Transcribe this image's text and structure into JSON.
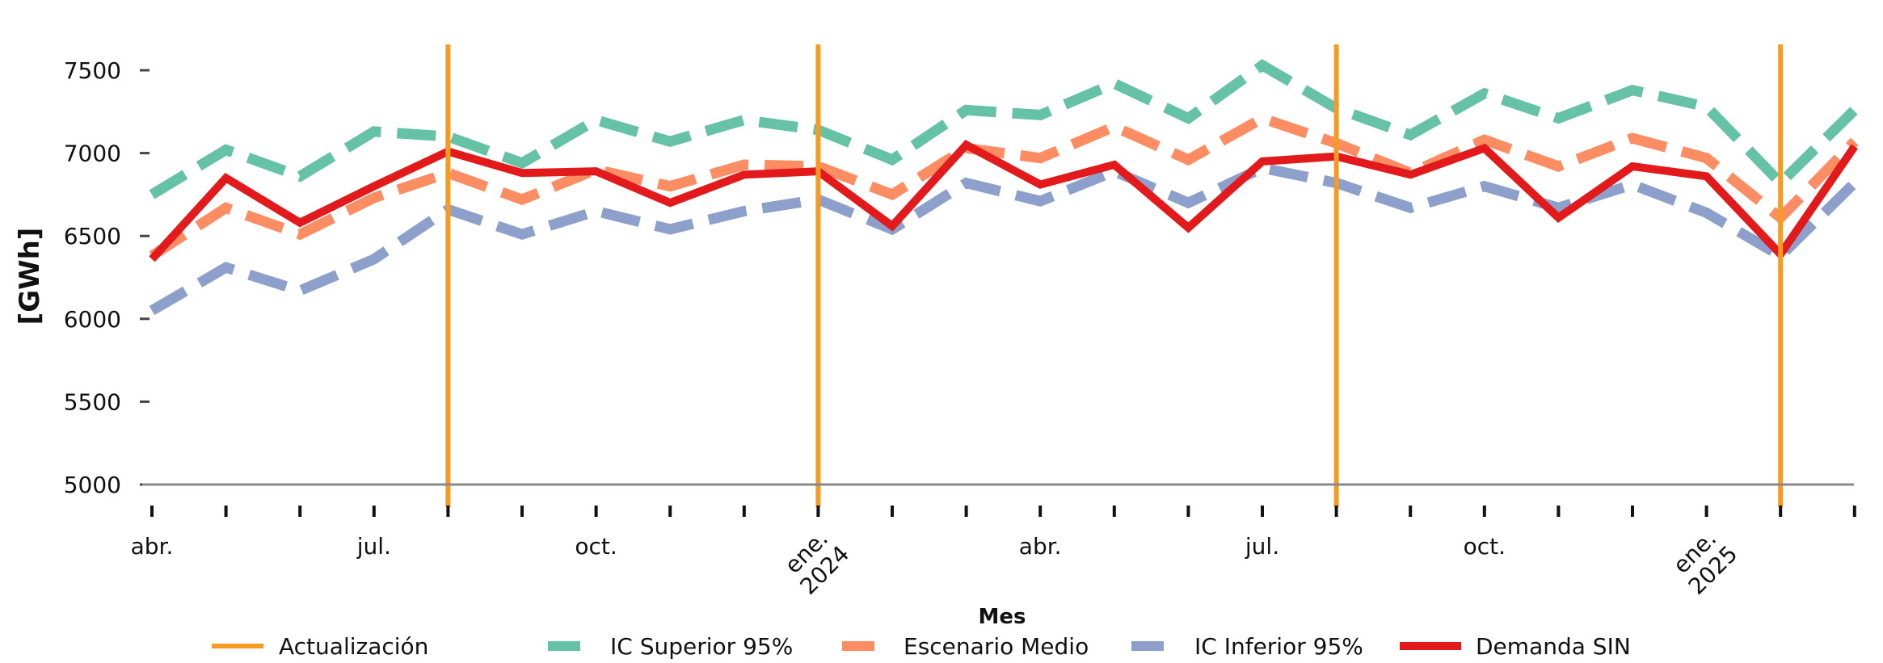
{
  "chart_data": {
    "type": "line",
    "title": "",
    "xlabel": "Mes",
    "ylabel": "[GWh]",
    "ylim": [
      5000,
      7500
    ],
    "yticks": [
      5000,
      5500,
      6000,
      6500,
      7000,
      7500
    ],
    "x_start": "2023-04",
    "x": [
      "2023-04",
      "2023-05",
      "2023-06",
      "2023-07",
      "2023-08",
      "2023-09",
      "2023-10",
      "2023-11",
      "2023-12",
      "2024-01",
      "2024-02",
      "2024-03",
      "2024-04",
      "2024-05",
      "2024-06",
      "2024-07",
      "2024-08",
      "2024-09",
      "2024-10",
      "2024-11",
      "2024-12",
      "2025-01",
      "2025-02",
      "2025-03",
      "2025-04"
    ],
    "x_tick_labels": [
      {
        "month": "2023-04",
        "label": "abr."
      },
      {
        "month": "2023-07",
        "label": "jul."
      },
      {
        "month": "2023-10",
        "label": "oct."
      },
      {
        "month": "2024-01",
        "label": "ene.\n2024",
        "rotated": true
      },
      {
        "month": "2024-04",
        "label": "abr."
      },
      {
        "month": "2024-07",
        "label": "jul."
      },
      {
        "month": "2024-10",
        "label": "oct."
      },
      {
        "month": "2025-01",
        "label": "ene.\n2025",
        "rotated": true
      }
    ],
    "series": [
      {
        "name": "IC Superior 95%",
        "color": "#66c2a5",
        "dash": true,
        "values": [
          6750,
          7020,
          6860,
          7130,
          7100,
          6940,
          7200,
          7070,
          7200,
          7140,
          6960,
          7260,
          7230,
          7420,
          7210,
          7530,
          7270,
          7110,
          7360,
          7210,
          7380,
          7280,
          6820,
          7260,
          null
        ]
      },
      {
        "name": "Escenario Medio",
        "color": "#fc8d62",
        "dash": true,
        "values": [
          6380,
          6670,
          6510,
          6730,
          6880,
          6720,
          6900,
          6800,
          6930,
          6920,
          6750,
          7030,
          6970,
          7160,
          6960,
          7210,
          7060,
          6880,
          7080,
          6920,
          7090,
          6970,
          6610,
          7070,
          null
        ]
      },
      {
        "name": "IC Inferior 95%",
        "color": "#8da0cb",
        "dash": true,
        "values": [
          6050,
          6310,
          6170,
          6360,
          6660,
          6510,
          6650,
          6540,
          6650,
          6720,
          6540,
          6820,
          6710,
          6890,
          6700,
          6910,
          6820,
          6670,
          6800,
          6670,
          6810,
          6640,
          6380,
          6820,
          null
        ]
      },
      {
        "name": "Demanda SIN",
        "color": "#e31a1c",
        "dash": false,
        "values": [
          6360,
          6850,
          6580,
          6800,
          7010,
          6880,
          6890,
          6700,
          6870,
          6890,
          6560,
          7050,
          6810,
          6930,
          6550,
          6950,
          6980,
          6870,
          7030,
          6610,
          6920,
          6860,
          6390,
          7040,
          null
        ]
      }
    ],
    "vlines": {
      "name": "Actualización",
      "color": "#f59a23",
      "months": [
        "2023-08",
        "2024-01",
        "2024-08",
        "2025-02"
      ]
    },
    "legend": {
      "position": "bottom",
      "order": [
        "Actualización",
        "IC Superior 95%",
        "Escenario Medio",
        "IC Inferior 95%",
        "Demanda SIN"
      ]
    },
    "grid": false
  }
}
